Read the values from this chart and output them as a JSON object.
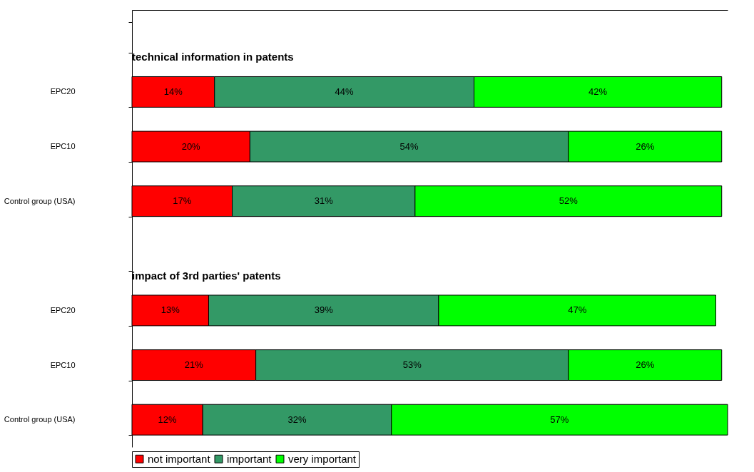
{
  "chart_data": {
    "type": "bar",
    "orientation": "horizontal",
    "stacked": true,
    "categories": [
      null,
      "EPC20",
      "EPC10",
      "Control group (USA)",
      null,
      "EPC20",
      "EPC10",
      "Control group (USA)"
    ],
    "annotations": [
      "technical information in patents",
      "impact of 3rd parties' patents"
    ],
    "series": [
      {
        "name": "not important",
        "color": "#ff0000",
        "values": [
          null,
          14,
          20,
          17,
          null,
          13,
          21,
          12
        ],
        "value_labels": [
          null,
          "14%",
          "20%",
          "17%",
          null,
          "13%",
          "21%",
          "12%"
        ]
      },
      {
        "name": "important",
        "color": "#339966",
        "values": [
          null,
          44,
          54,
          31,
          null,
          39,
          53,
          32
        ],
        "value_labels": [
          null,
          "44%",
          "54%",
          "31%",
          null,
          "39%",
          "53%",
          "32%"
        ]
      },
      {
        "name": "very important",
        "color": "#00ff00",
        "values": [
          null,
          42,
          26,
          52,
          null,
          47,
          26,
          57
        ],
        "value_labels": [
          null,
          "42%",
          "26%",
          "52%",
          null,
          "47%",
          "26%",
          "57%"
        ]
      }
    ],
    "tick_labels": "y",
    "grid": false,
    "legend": "bottom"
  }
}
